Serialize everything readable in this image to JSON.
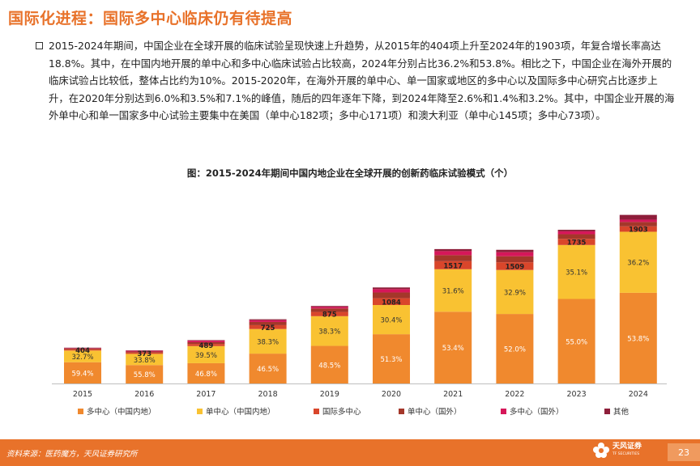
{
  "header": {
    "title": "国际化进程：国际多中心临床仍有待提高"
  },
  "summary": {
    "text": "2015-2024年期间，中国企业在全球开展的临床试验呈现快速上升趋势，从2015年的404项上升至2024年的1903项，年复合增长率高达18.8%。其中，在中国内地开展的单中心和多中心临床试验占比较高，2024年分别占比36.2%和53.8%。相比之下，中国企业在海外开展的临床试验占比较低，整体占比约为10%。2015-2020年，在海外开展的单中心、单一国家或地区的多中心以及国际多中心研究占比逐步上升，在2020年分别达到6.0%和3.5%和7.1%的峰值，随后的四年逐年下降，到2024年降至2.6%和1.4%和3.2%。其中，中国企业开展的海外单中心和单一国家多中心试验主要集中在美国（单中心182项；多中心171项）和澳大利亚（单中心145项；多中心73项）。"
  },
  "chart_data": {
    "type": "bar",
    "stacked": true,
    "title": "图：2015-2024年期间中国内地企业在全球开展的创新药临床试验模式（个）",
    "categories": [
      "2015",
      "2016",
      "2017",
      "2018",
      "2019",
      "2020",
      "2021",
      "2022",
      "2023",
      "2024"
    ],
    "totals": [
      404,
      373,
      489,
      725,
      875,
      1084,
      1517,
      1509,
      1735,
      1903
    ],
    "total_labels": [
      "404",
      "373",
      "489",
      "725",
      "875",
      "1084",
      "1517",
      "1509",
      "1735",
      "1903"
    ],
    "series": [
      {
        "name": "多中心（中国内地）",
        "color": "#F0892E",
        "percents": [
          59.4,
          55.8,
          46.8,
          46.5,
          48.5,
          51.3,
          53.4,
          52.0,
          55.0,
          53.8
        ],
        "labels": [
          "59.4%",
          "55.8%",
          "46.8%",
          "46.5%",
          "48.5%",
          "51.3%",
          "53.4%",
          "52.0%",
          "55.0%",
          "53.8%"
        ]
      },
      {
        "name": "单中心（中国内地）",
        "color": "#F9C232",
        "percents": [
          32.7,
          33.8,
          39.5,
          38.3,
          38.3,
          30.4,
          31.6,
          32.9,
          35.1,
          36.2
        ],
        "labels": [
          "32.7%",
          "33.8%",
          "39.5%",
          "38.3%",
          "38.3%",
          "30.4%",
          "31.6%",
          "32.9%",
          "35.1%",
          "36.2%"
        ]
      },
      {
        "name": "国际多中心",
        "color": "#D9462B",
        "percents": [
          3.2,
          4.0,
          5.0,
          6.0,
          5.5,
          7.1,
          6.0,
          5.8,
          4.0,
          3.2
        ]
      },
      {
        "name": "单中心（国外）",
        "color": "#A4372A",
        "percents": [
          2.5,
          3.0,
          4.0,
          5.0,
          4.5,
          6.0,
          4.5,
          4.5,
          3.0,
          2.6
        ]
      },
      {
        "name": "多中心（国外）",
        "color": "#D6175A",
        "percents": [
          1.5,
          2.5,
          3.5,
          2.7,
          2.0,
          3.5,
          3.0,
          3.0,
          1.9,
          1.4
        ]
      },
      {
        "name": "其他",
        "color": "#8E1E3A",
        "percents": [
          0.7,
          0.9,
          1.2,
          1.5,
          1.2,
          1.7,
          1.5,
          1.8,
          1.0,
          2.8
        ]
      }
    ],
    "xlabel": "",
    "ylabel": "",
    "ylim": [
      0,
      2000
    ],
    "legend_position": "bottom"
  },
  "footer": {
    "source": "资料来源：医药魔方，天风证券研究所",
    "brand_name": "天风证券",
    "brand_sub": "TF SECURITIES",
    "page_number": "23"
  },
  "colors": {
    "accent": "#E8722A"
  }
}
